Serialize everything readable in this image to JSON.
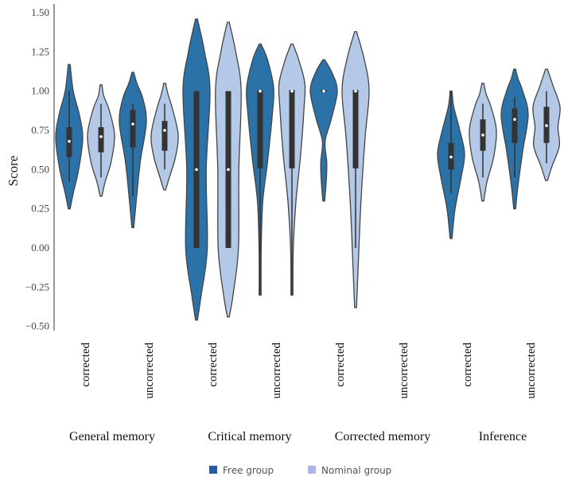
{
  "chart_data": {
    "type": "violin",
    "title": "",
    "xlabel": "",
    "ylabel": "Score",
    "ylim": [
      -0.5,
      1.5
    ],
    "yticks": [
      "1.50",
      "1.25",
      "1.00",
      "0.75",
      "0.50",
      "0.25",
      "0.00",
      "−0.25",
      "−0.50"
    ],
    "ytick_values": [
      1.5,
      1.25,
      1.0,
      0.75,
      0.5,
      0.25,
      0.0,
      -0.25,
      -0.5
    ],
    "grid": false,
    "legend": {
      "placement": "bottom",
      "entries": [
        {
          "name": "Free group",
          "color": "#2c5aa0"
        },
        {
          "name": "Nominal group",
          "color": "#a9b4f0"
        }
      ]
    },
    "fill_colors": {
      "Free group": "#2b72a8",
      "Nominal group": "#b4c8e8"
    },
    "groups": [
      {
        "label": "General memory",
        "categories": [
          "corrected",
          "uncorrected"
        ]
      },
      {
        "label": "Critical memory",
        "categories": [
          "corrected",
          "uncorrected"
        ]
      },
      {
        "label": "Corrected memory",
        "categories": [
          "corrected",
          "uncorrected"
        ]
      },
      {
        "label": "Inference",
        "categories": [
          "corrected",
          "uncorrected"
        ]
      }
    ],
    "violins": [
      {
        "group": 0,
        "category": 0,
        "series": "Free group",
        "median": 0.68,
        "q1": 0.58,
        "q3": 0.77,
        "whisker": [
          0.42,
          1.0
        ],
        "density": [
          [
            0.25,
            0
          ],
          [
            0.35,
            0.3
          ],
          [
            0.5,
            0.7
          ],
          [
            0.7,
            1
          ],
          [
            0.85,
            0.75
          ],
          [
            1.0,
            0.3
          ],
          [
            1.17,
            0
          ]
        ]
      },
      {
        "group": 0,
        "category": 0,
        "series": "Nominal group",
        "median": 0.71,
        "q1": 0.61,
        "q3": 0.77,
        "whisker": [
          0.45,
          0.92
        ],
        "density": [
          [
            0.33,
            0
          ],
          [
            0.42,
            0.3
          ],
          [
            0.55,
            0.75
          ],
          [
            0.72,
            1
          ],
          [
            0.88,
            0.6
          ],
          [
            0.97,
            0.2
          ],
          [
            1.04,
            0
          ]
        ]
      },
      {
        "group": 0,
        "category": 1,
        "series": "Free group",
        "median": 0.79,
        "q1": 0.64,
        "q3": 0.88,
        "whisker": [
          0.33,
          0.92
        ],
        "density": [
          [
            0.13,
            0
          ],
          [
            0.3,
            0.25
          ],
          [
            0.55,
            0.55
          ],
          [
            0.8,
            1
          ],
          [
            0.95,
            0.75
          ],
          [
            1.05,
            0.3
          ],
          [
            1.12,
            0
          ]
        ]
      },
      {
        "group": 0,
        "category": 1,
        "series": "Nominal group",
        "median": 0.75,
        "q1": 0.62,
        "q3": 0.81,
        "whisker": [
          0.5,
          0.92
        ],
        "density": [
          [
            0.37,
            0
          ],
          [
            0.45,
            0.35
          ],
          [
            0.58,
            0.8
          ],
          [
            0.72,
            1
          ],
          [
            0.88,
            0.6
          ],
          [
            0.98,
            0.25
          ],
          [
            1.05,
            0
          ]
        ]
      },
      {
        "group": 1,
        "category": 0,
        "series": "Free group",
        "median": 0.5,
        "q1": 0.0,
        "q3": 1.0,
        "whisker": [
          0.0,
          1.0
        ],
        "density": [
          [
            -0.46,
            0
          ],
          [
            -0.3,
            0.35
          ],
          [
            0.0,
            0.8
          ],
          [
            0.5,
            0.72
          ],
          [
            1.0,
            1
          ],
          [
            1.25,
            0.6
          ],
          [
            1.46,
            0
          ]
        ]
      },
      {
        "group": 1,
        "category": 0,
        "series": "Nominal group",
        "median": 0.5,
        "q1": 0.0,
        "q3": 1.0,
        "whisker": [
          0.0,
          1.0
        ],
        "density": [
          [
            -0.44,
            0
          ],
          [
            -0.3,
            0.35
          ],
          [
            0.0,
            0.75
          ],
          [
            0.5,
            0.78
          ],
          [
            1.0,
            0.95
          ],
          [
            1.25,
            0.55
          ],
          [
            1.44,
            0
          ]
        ]
      },
      {
        "group": 1,
        "category": 1,
        "series": "Free group",
        "median": 1.0,
        "q1": 0.5,
        "q3": 1.0,
        "whisker": [
          -0.3,
          1.0
        ],
        "density": [
          [
            -0.3,
            0
          ],
          [
            0.0,
            0.08
          ],
          [
            0.3,
            0.2
          ],
          [
            0.55,
            0.55
          ],
          [
            0.85,
            0.9
          ],
          [
            1.02,
            1
          ],
          [
            1.2,
            0.55
          ],
          [
            1.3,
            0
          ]
        ]
      },
      {
        "group": 1,
        "category": 1,
        "series": "Nominal group",
        "median": 1.0,
        "q1": 0.5,
        "q3": 1.0,
        "whisker": [
          -0.3,
          1.0
        ],
        "density": [
          [
            -0.3,
            0
          ],
          [
            0.0,
            0.1
          ],
          [
            0.3,
            0.3
          ],
          [
            0.6,
            0.65
          ],
          [
            0.9,
            0.9
          ],
          [
            1.05,
            0.95
          ],
          [
            1.2,
            0.5
          ],
          [
            1.3,
            0
          ]
        ]
      },
      {
        "group": 2,
        "category": 0,
        "series": "Free group",
        "median": 1.0,
        "q1": 1.0,
        "q3": 1.0,
        "whisker": [
          1.0,
          1.0
        ],
        "density": [
          [
            0.3,
            0
          ],
          [
            0.45,
            0.2
          ],
          [
            0.55,
            0.22
          ],
          [
            0.68,
            0.1
          ],
          [
            0.82,
            0.55
          ],
          [
            1.0,
            1
          ],
          [
            1.12,
            0.6
          ],
          [
            1.2,
            0
          ]
        ]
      },
      {
        "group": 2,
        "category": 0,
        "series": "Nominal group",
        "median": 1.0,
        "q1": 0.5,
        "q3": 1.0,
        "whisker": [
          0.0,
          1.0
        ],
        "density": [
          [
            -0.38,
            0
          ],
          [
            -0.1,
            0.2
          ],
          [
            0.3,
            0.4
          ],
          [
            0.7,
            0.7
          ],
          [
            1.0,
            1
          ],
          [
            1.2,
            0.65
          ],
          [
            1.38,
            0
          ]
        ]
      },
      {
        "group": 3,
        "category": 0,
        "series": "Free group",
        "median": 0.58,
        "q1": 0.5,
        "q3": 0.67,
        "whisker": [
          0.35,
          1.0
        ],
        "density": [
          [
            0.06,
            0
          ],
          [
            0.25,
            0.3
          ],
          [
            0.45,
            0.75
          ],
          [
            0.6,
            1
          ],
          [
            0.75,
            0.65
          ],
          [
            0.9,
            0.2
          ],
          [
            1.0,
            0
          ]
        ]
      },
      {
        "group": 3,
        "category": 0,
        "series": "Nominal group",
        "median": 0.72,
        "q1": 0.62,
        "q3": 0.82,
        "whisker": [
          0.45,
          0.92
        ],
        "density": [
          [
            0.3,
            0
          ],
          [
            0.42,
            0.3
          ],
          [
            0.58,
            0.8
          ],
          [
            0.75,
            1
          ],
          [
            0.9,
            0.6
          ],
          [
            0.98,
            0.25
          ],
          [
            1.05,
            0
          ]
        ]
      },
      {
        "group": 3,
        "category": 1,
        "series": "Free group",
        "median": 0.82,
        "q1": 0.67,
        "q3": 0.89,
        "whisker": [
          0.45,
          0.96
        ],
        "density": [
          [
            0.25,
            0
          ],
          [
            0.4,
            0.25
          ],
          [
            0.62,
            0.6
          ],
          [
            0.85,
            1
          ],
          [
            1.0,
            0.6
          ],
          [
            1.08,
            0.25
          ],
          [
            1.14,
            0
          ]
        ]
      },
      {
        "group": 3,
        "category": 1,
        "series": "Nominal group",
        "median": 0.78,
        "q1": 0.67,
        "q3": 0.9,
        "whisker": [
          0.54,
          1.0
        ],
        "density": [
          [
            0.43,
            0
          ],
          [
            0.52,
            0.4
          ],
          [
            0.65,
            0.95
          ],
          [
            0.77,
            0.85
          ],
          [
            0.9,
            1
          ],
          [
            1.03,
            0.5
          ],
          [
            1.14,
            0
          ]
        ]
      }
    ]
  }
}
